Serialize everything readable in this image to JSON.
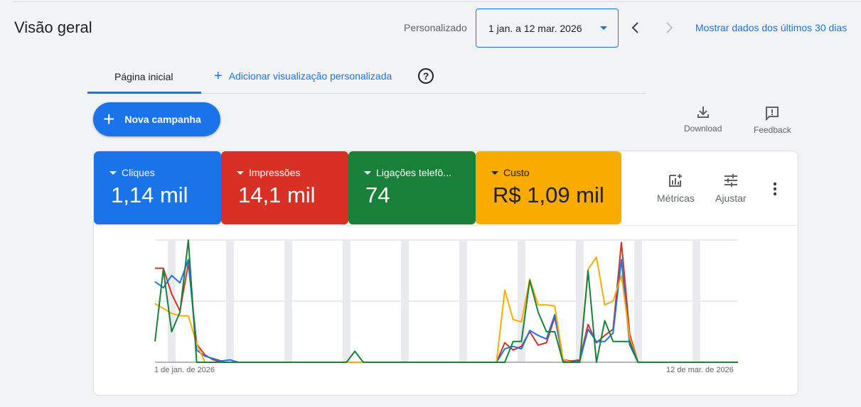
{
  "header": {
    "title": "Visão geral",
    "date_range_label": "Personalizado",
    "date_range_value": "1 jan. a 12 mar. 2026",
    "last_30_link": "Mostrar dados dos últimos 30 dias"
  },
  "tabs": {
    "home": "Página inicial",
    "add_view": "Adicionar visualização personalizada"
  },
  "actions": {
    "new_campaign": "Nova campanha",
    "download": "Download",
    "feedback": "Feedback",
    "metrics": "Métricas",
    "adjust": "Ajustar"
  },
  "metrics": [
    {
      "label": "Cliques",
      "value": "1,14 mil",
      "color": "#1a73e8",
      "text_color": "#ffffff"
    },
    {
      "label": "Impressões",
      "value": "14,1 mil",
      "color": "#d93025",
      "text_color": "#ffffff"
    },
    {
      "label": "Ligações telefô...",
      "value": "74",
      "color": "#188038",
      "text_color": "#ffffff"
    },
    {
      "label": "Custo",
      "value": "R$ 1,09 mil",
      "color": "#f9ab00",
      "text_color": "#202124"
    }
  ],
  "chart_data": {
    "type": "line",
    "title": "",
    "xlabel": "",
    "ylabel": "",
    "x_start_label": "1 de jan. de 2026",
    "x_end_label": "12 de mar. de 2026",
    "days": 71,
    "y_normalized": [
      0,
      100
    ],
    "grid": true,
    "weekend_bands_start_day": 2,
    "series": [
      {
        "name": "Cliques",
        "color": "#1a73e8",
        "values": [
          66,
          61,
          71,
          65,
          84,
          10,
          5,
          3,
          1,
          2,
          0,
          0,
          0,
          0,
          0,
          0,
          0,
          0,
          0,
          0,
          0,
          0,
          0,
          0,
          0,
          0,
          0,
          0,
          0,
          0,
          0,
          0,
          0,
          0,
          0,
          0,
          0,
          0,
          0,
          0,
          0,
          0,
          11,
          13,
          11,
          26,
          22,
          19,
          39,
          1,
          0,
          1,
          27,
          17,
          17,
          24,
          84,
          14,
          0,
          0,
          0,
          0,
          0,
          0,
          0,
          0,
          0,
          0,
          0,
          0,
          0
        ]
      },
      {
        "name": "Impressões",
        "color": "#d93025",
        "values": [
          77,
          77,
          56,
          42,
          81,
          15,
          6,
          2,
          0,
          0,
          0,
          0,
          0,
          0,
          0,
          0,
          0,
          0,
          0,
          0,
          0,
          0,
          0,
          0,
          0,
          0,
          0,
          0,
          0,
          0,
          0,
          0,
          0,
          0,
          0,
          0,
          0,
          0,
          0,
          0,
          0,
          0,
          16,
          10,
          13,
          25,
          14,
          16,
          37,
          2,
          1,
          2,
          31,
          16,
          22,
          27,
          98,
          23,
          0,
          0,
          0,
          0,
          0,
          0,
          0,
          0,
          0,
          0,
          0,
          0,
          0
        ]
      },
      {
        "name": "Custo",
        "color": "#f9ab00",
        "values": [
          48,
          44,
          40,
          38,
          38,
          15,
          0,
          0,
          0,
          0,
          0,
          0,
          0,
          0,
          0,
          0,
          0,
          0,
          0,
          0,
          0,
          0,
          0,
          0,
          0,
          0,
          0,
          0,
          0,
          0,
          0,
          0,
          0,
          0,
          0,
          0,
          0,
          0,
          0,
          0,
          0,
          0,
          59,
          35,
          33,
          68,
          47,
          47,
          46,
          2,
          0,
          0,
          76,
          86,
          47,
          50,
          71,
          20,
          0,
          0,
          0,
          0,
          0,
          0,
          0,
          0,
          0,
          0,
          0,
          0,
          0
        ]
      },
      {
        "name": "Ligações telefônicas",
        "color": "#188038",
        "values": [
          17,
          76,
          25,
          41,
          100,
          0,
          0,
          0,
          0,
          0,
          0,
          0,
          0,
          0,
          0,
          0,
          0,
          0,
          0,
          0,
          0,
          0,
          0,
          0,
          9,
          0,
          0,
          0,
          0,
          0,
          0,
          0,
          0,
          0,
          0,
          0,
          0,
          0,
          0,
          0,
          0,
          0,
          0,
          17,
          17,
          67,
          41,
          25,
          25,
          0,
          0,
          0,
          75,
          0,
          34,
          17,
          17,
          17,
          0,
          0,
          0,
          0,
          0,
          0,
          0,
          0,
          0,
          0,
          0,
          0,
          0
        ]
      }
    ]
  }
}
